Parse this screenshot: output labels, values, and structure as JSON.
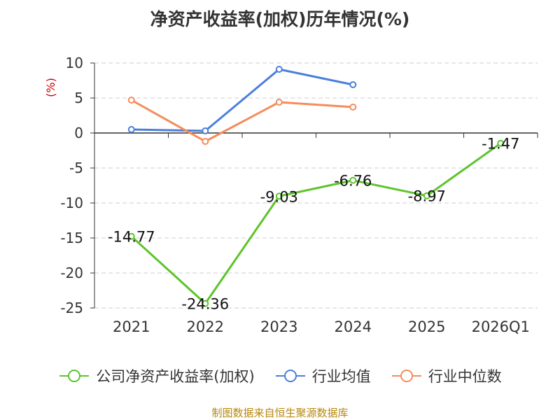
{
  "chart_data": {
    "type": "line",
    "title": "净资产收益率(加权)历年情况(%)",
    "ylabel": "(%)",
    "source": "制图数据来自恒生聚源数据库",
    "categories": [
      "2021",
      "2022",
      "2023",
      "2024",
      "2025",
      "2026Q1"
    ],
    "ylim": [
      -25,
      10
    ],
    "yticks": [
      "10",
      "5",
      "0",
      "-5",
      "-10",
      "-15",
      "-20",
      "-25"
    ],
    "grid": true,
    "legend_position": "bottom",
    "series": [
      {
        "name": "公司净资产收益率(加权)",
        "color": "#5cc42a",
        "values": [
          -14.77,
          -24.36,
          -9.03,
          -6.76,
          -8.97,
          -1.47
        ],
        "labels": [
          "-14.77",
          "-24.36",
          "-9.03",
          "-6.76",
          "-8.97",
          "-1.47"
        ]
      },
      {
        "name": "行业均值",
        "color": "#4a7fdc",
        "values": [
          0.5,
          0.3,
          9.1,
          6.9,
          null,
          null
        ]
      },
      {
        "name": "行业中位数",
        "color": "#f58c5a",
        "values": [
          4.7,
          -1.2,
          4.4,
          3.7,
          null,
          null
        ]
      }
    ]
  }
}
